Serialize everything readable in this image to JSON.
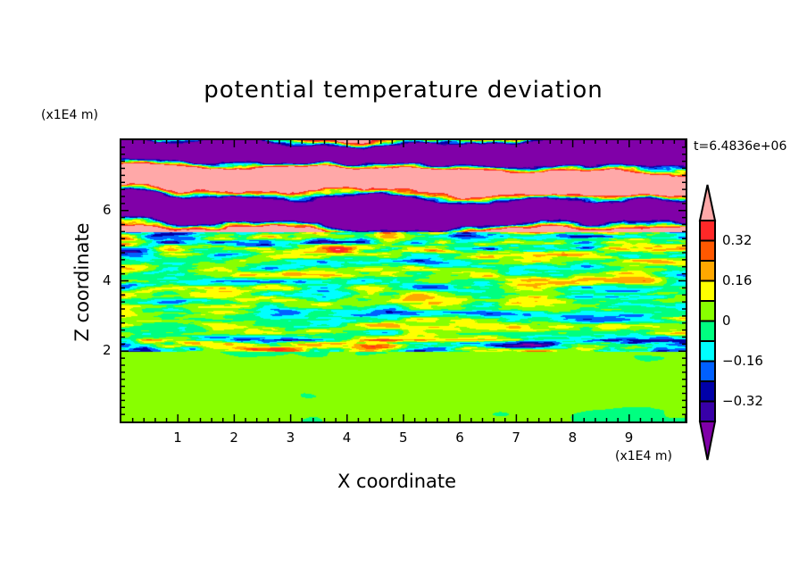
{
  "chart_data": {
    "type": "heatmap",
    "title": "potential temperature deviation",
    "xlabel": "X coordinate",
    "ylabel": "Z coordinate",
    "x_unit": "(x1E4 m)",
    "y_unit": "(x1E4 m)",
    "time_label": "t=6.4836e+06",
    "xlim": [
      0,
      10
    ],
    "ylim": [
      0,
      8
    ],
    "x_ticks": [
      "1",
      "2",
      "3",
      "4",
      "5",
      "6",
      "7",
      "8",
      "9"
    ],
    "y_ticks": [
      "2",
      "4",
      "6"
    ],
    "levels": [
      -0.4,
      -0.32,
      -0.24,
      -0.16,
      -0.08,
      0,
      0.08,
      0.16,
      0.24,
      0.32,
      0.4
    ],
    "colorbar_labels": [
      "0.32",
      "0.16",
      "0",
      "-0.16",
      "-0.32"
    ],
    "colors": [
      "#8000a8",
      "#3800a8",
      "#0000a8",
      "#0060ff",
      "#00ffff",
      "#00ff80",
      "#88ff00",
      "#ffff00",
      "#ffa800",
      "#ff5800",
      "#ff2828",
      "#ffa8a8"
    ],
    "regions": [
      {
        "z_range": [
          0,
          2
        ],
        "description_values": "near 0 (-0.08 to 0.08)"
      },
      {
        "z_range": [
          2,
          5.4
        ],
        "description_values": "-0.4 to 0.4 turbulent"
      },
      {
        "z_range": [
          5.4,
          8
        ],
        "description_values": "alternating bands beyond +/-0.4"
      }
    ]
  }
}
